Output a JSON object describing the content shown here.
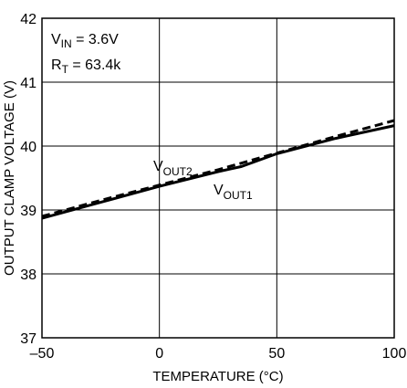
{
  "chart_data": {
    "type": "line",
    "xlabel": "TEMPERATURE (°C)",
    "ylabel": "OUTPUT CLAMP VOLTAGE (V)",
    "xlim": [
      -50,
      100
    ],
    "ylim": [
      37,
      42
    ],
    "x_ticks": [
      -50,
      0,
      50,
      100
    ],
    "y_ticks": [
      37,
      38,
      39,
      40,
      41,
      42
    ],
    "x_tick_labels": [
      "–50",
      "0",
      "50",
      "100"
    ],
    "y_tick_labels": [
      "37",
      "38",
      "39",
      "40",
      "41",
      "42"
    ],
    "grid": true,
    "annotations": {
      "vin": {
        "main": "V",
        "sub": "IN",
        "rest": " = 3.6V"
      },
      "rt": {
        "main": "R",
        "sub": "T",
        "rest": " = 63.4k"
      }
    },
    "series": [
      {
        "name": "VOUT1",
        "label_main": "V",
        "label_sub": "OUT1",
        "style": "solid",
        "color": "#000000",
        "x": [
          -50,
          -25,
          0,
          25,
          35,
          50,
          75,
          100
        ],
        "y": [
          38.87,
          39.12,
          39.37,
          39.6,
          39.68,
          39.88,
          40.12,
          40.32
        ]
      },
      {
        "name": "VOUT2",
        "label_main": "V",
        "label_sub": "OUT2",
        "style": "dashed",
        "color": "#000000",
        "x": [
          -50,
          -25,
          0,
          25,
          50,
          75,
          100
        ],
        "y": [
          38.9,
          39.15,
          39.39,
          39.63,
          39.89,
          40.15,
          40.4
        ]
      }
    ]
  }
}
